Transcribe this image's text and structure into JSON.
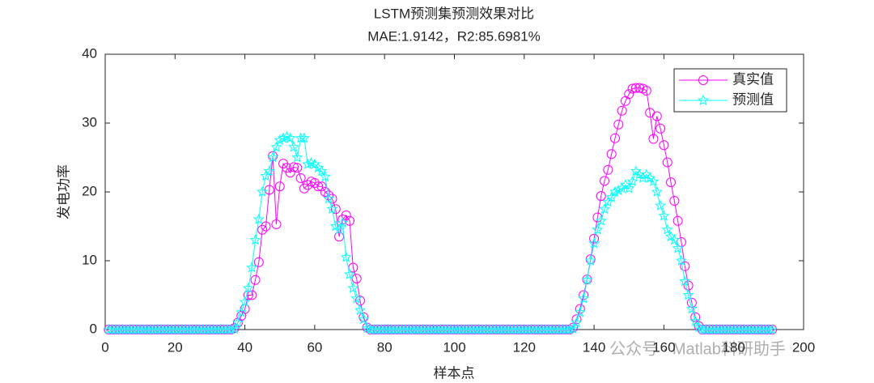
{
  "chart_data": {
    "type": "line",
    "title": "LSTM预测集预测效果对比",
    "subtitle": "MAE:1.9142，R2:85.6981%",
    "x_label": "样本点",
    "y_label": "发电功率",
    "watermark": "公众号 · Matlab科研助手",
    "xlim": [
      0,
      200
    ],
    "xticks": [
      0,
      20,
      40,
      60,
      80,
      100,
      120,
      140,
      160,
      180,
      200
    ],
    "ylim": [
      0,
      40
    ],
    "yticks": [
      0,
      10,
      20,
      30,
      40
    ],
    "legend": "upper right",
    "x": [
      1,
      2,
      3,
      4,
      5,
      6,
      7,
      8,
      9,
      10,
      11,
      12,
      13,
      14,
      15,
      16,
      17,
      18,
      19,
      20,
      21,
      22,
      23,
      24,
      25,
      26,
      27,
      28,
      29,
      30,
      31,
      32,
      33,
      34,
      35,
      36,
      37,
      38,
      39,
      40,
      41,
      42,
      43,
      44,
      45,
      46,
      47,
      48,
      49,
      50,
      51,
      52,
      53,
      54,
      55,
      56,
      57,
      58,
      59,
      60,
      61,
      62,
      63,
      64,
      65,
      66,
      67,
      68,
      69,
      70,
      71,
      72,
      73,
      74,
      75,
      76,
      77,
      78,
      79,
      80,
      81,
      82,
      83,
      84,
      85,
      86,
      87,
      88,
      89,
      90,
      91,
      92,
      93,
      94,
      95,
      96,
      97,
      98,
      99,
      100,
      101,
      102,
      103,
      104,
      105,
      106,
      107,
      108,
      109,
      110,
      111,
      112,
      113,
      114,
      115,
      116,
      117,
      118,
      119,
      120,
      121,
      122,
      123,
      124,
      125,
      126,
      127,
      128,
      129,
      130,
      131,
      132,
      133,
      134,
      135,
      136,
      137,
      138,
      139,
      140,
      141,
      142,
      143,
      144,
      145,
      146,
      147,
      148,
      149,
      150,
      151,
      152,
      153,
      154,
      155,
      156,
      157,
      158,
      159,
      160,
      161,
      162,
      163,
      164,
      165,
      166,
      167,
      168,
      169,
      170,
      171,
      172,
      173,
      174,
      175,
      176,
      177,
      178,
      179,
      180,
      181,
      182,
      183,
      184,
      185,
      186,
      187,
      188,
      189,
      190,
      191
    ],
    "series": [
      {
        "name": "真实值",
        "color": "#ff00ff",
        "marker": "circle",
        "values": [
          0,
          0,
          0,
          0,
          0,
          0,
          0,
          0,
          0,
          0,
          0,
          0,
          0,
          0,
          0,
          0,
          0,
          0,
          0,
          0,
          0,
          0,
          0,
          0,
          0,
          0,
          0,
          0,
          0,
          0,
          0,
          0,
          0,
          0,
          0,
          0,
          0.2,
          1,
          2,
          3,
          5,
          5,
          7.2,
          9.8,
          14.5,
          15,
          20.3,
          25.2,
          15.3,
          20.8,
          24.1,
          23.5,
          22.8,
          23.6,
          23.5,
          22,
          20.5,
          21,
          21.5,
          21.3,
          20.8,
          20.8,
          20,
          19.5,
          19,
          17.5,
          13.5,
          16,
          16.6,
          15.8,
          9,
          7.4,
          4.2,
          1.8,
          0.3,
          0,
          0,
          0,
          0,
          0,
          0,
          0,
          0,
          0,
          0,
          0,
          0,
          0,
          0,
          0,
          0,
          0,
          0,
          0,
          0,
          0,
          0,
          0,
          0,
          0,
          0,
          0,
          0,
          0,
          0,
          0,
          0,
          0,
          0,
          0,
          0,
          0,
          0,
          0,
          0,
          0,
          0,
          0,
          0,
          0,
          0,
          0,
          0,
          0,
          0,
          0,
          0,
          0,
          0,
          0,
          0,
          0,
          0,
          0.3,
          1.5,
          3,
          5,
          7.3,
          10.2,
          13.2,
          16.3,
          19.4,
          21.6,
          23.2,
          25.5,
          27.8,
          29.8,
          31.8,
          33.2,
          34.2,
          35,
          35.1,
          35.1,
          35,
          34.7,
          31.5,
          27.7,
          31,
          29.2,
          26.8,
          24.3,
          21.4,
          18.7,
          15.8,
          12.7,
          9.2,
          6.4,
          3.9,
          1.8,
          0.5,
          0,
          0,
          0,
          0,
          0,
          0,
          0,
          0,
          0,
          0,
          0,
          0,
          0,
          0,
          0,
          0,
          0,
          0,
          0,
          0,
          0
        ]
      },
      {
        "name": "预测值",
        "color": "#00ffff",
        "marker": "star",
        "values": [
          0,
          0,
          0,
          0,
          0,
          0,
          0,
          0,
          0,
          0,
          0,
          0,
          0,
          0,
          0,
          0,
          0,
          0,
          0,
          0,
          0,
          0,
          0,
          0,
          0,
          0,
          0,
          0,
          0,
          0,
          0,
          0,
          0,
          0,
          0,
          0,
          0.1,
          1,
          2.5,
          4,
          6,
          9,
          13,
          16,
          20,
          22.3,
          23,
          25,
          26.5,
          27.5,
          27.8,
          28,
          27.8,
          26.5,
          25,
          27.8,
          27.8,
          24,
          24.2,
          24,
          23.5,
          23,
          22.2,
          19,
          17.5,
          15,
          14.5,
          15.5,
          10.5,
          8,
          6,
          4.5,
          2.8,
          1.5,
          0.2,
          0,
          0,
          0,
          0,
          0,
          0,
          0,
          0,
          0,
          0,
          0,
          0,
          0,
          0,
          0,
          0,
          0,
          0,
          0,
          0,
          0,
          0,
          0,
          0,
          0,
          0,
          0,
          0,
          0,
          0,
          0,
          0,
          0,
          0,
          0,
          0,
          0,
          0,
          0,
          0,
          0,
          0,
          0,
          0,
          0,
          0,
          0,
          0,
          0,
          0,
          0,
          0,
          0,
          0,
          0,
          0,
          0,
          0,
          0.1,
          1,
          2.5,
          4.5,
          7.2,
          10,
          12.5,
          14.5,
          15.8,
          17.5,
          18.5,
          19.2,
          20,
          20.2,
          20.5,
          21,
          20.5,
          21.5,
          23,
          22.5,
          22,
          22.5,
          22,
          21.5,
          20,
          18,
          16.5,
          14.5,
          13.5,
          13,
          11.8,
          10,
          7,
          5,
          3,
          1.2,
          0.3,
          0,
          0,
          0,
          0,
          0,
          0,
          0,
          0,
          0,
          0,
          0,
          0,
          0,
          0,
          0,
          0,
          0,
          0,
          0,
          0,
          0
        ]
      }
    ]
  }
}
